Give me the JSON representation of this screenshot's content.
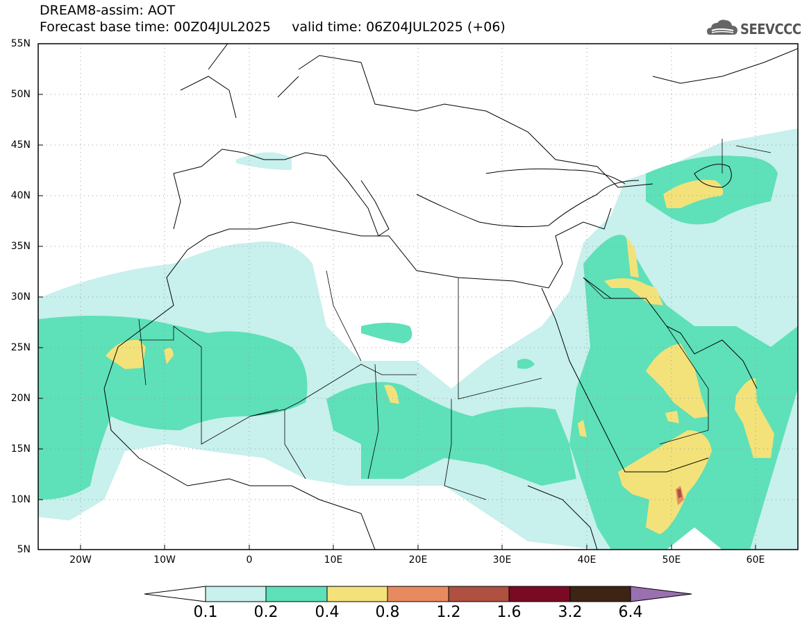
{
  "header": {
    "line1": "DREAM8-assim: AOT",
    "line2": "Forecast base time: 00Z04JUL2025     valid time: 06Z04JUL2025 (+06)"
  },
  "logo": {
    "text": "SEEVCCC",
    "icon": "cloud-icon"
  },
  "map": {
    "lat_range": [
      5,
      55
    ],
    "lon_range": [
      -25,
      65
    ],
    "lat_labels": [
      "55N",
      "50N",
      "45N",
      "40N",
      "35N",
      "30N",
      "25N",
      "20N",
      "15N",
      "10N",
      "5N"
    ],
    "lon_labels": [
      "20W",
      "10W",
      "0",
      "10E",
      "20E",
      "30E",
      "40E",
      "50E",
      "60E"
    ],
    "grid": "dotted"
  },
  "colorbar": {
    "labels": [
      "0.1",
      "0.2",
      "0.4",
      "0.8",
      "1.2",
      "1.6",
      "3.2",
      "6.4"
    ],
    "colors": [
      "#c8f0ec",
      "#5ee0b8",
      "#f3e27a",
      "#e88a60",
      "#b05040",
      "#7a0a24",
      "#3e2414"
    ],
    "under_color": "#ffffff",
    "over_color": "#9a70b0"
  }
}
